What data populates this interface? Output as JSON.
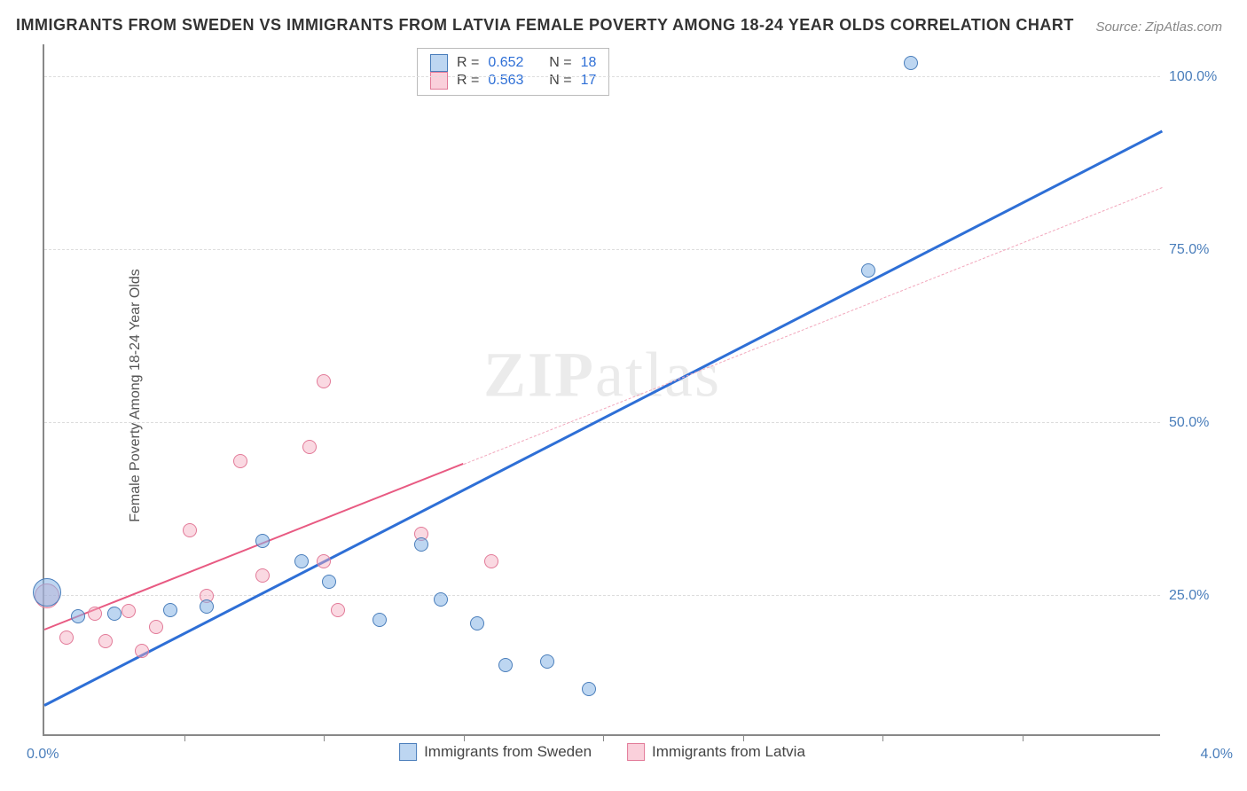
{
  "title": "IMMIGRANTS FROM SWEDEN VS IMMIGRANTS FROM LATVIA FEMALE POVERTY AMONG 18-24 YEAR OLDS CORRELATION CHART",
  "source": "Source: ZipAtlas.com",
  "ylabel": "Female Poverty Among 18-24 Year Olds",
  "watermark_a": "ZIP",
  "watermark_b": "atlas",
  "chart": {
    "type": "scatter",
    "xlim": [
      0.0,
      4.0
    ],
    "ylim": [
      5.0,
      105.0
    ],
    "x_tick_positions": [
      0.5,
      1.0,
      1.5,
      2.0,
      2.5,
      3.0,
      3.5
    ],
    "y_ticks": [
      25.0,
      50.0,
      75.0,
      100.0
    ],
    "y_tick_labels": [
      "25.0%",
      "50.0%",
      "75.0%",
      "100.0%"
    ],
    "xlim_label_left": "0.0%",
    "xlim_label_right": "4.0%",
    "grid_color": "#dddddd",
    "axis_color": "#888888",
    "background_color": "#ffffff",
    "marker_radius": 8,
    "series": {
      "sweden": {
        "label": "Immigrants from Sweden",
        "fill": "rgba(135,181,230,0.55)",
        "stroke": "#4a7ebb",
        "r_value": "0.652",
        "n_value": "18",
        "trend": {
          "x1": 0.0,
          "y1": 9.0,
          "x2": 4.0,
          "y2": 92.0,
          "color": "#2e6fd6"
        },
        "points": [
          {
            "x": 0.01,
            "y": 25.5,
            "r": 16
          },
          {
            "x": 0.12,
            "y": 22.0,
            "r": 8
          },
          {
            "x": 0.25,
            "y": 22.5,
            "r": 8
          },
          {
            "x": 0.45,
            "y": 23.0,
            "r": 8
          },
          {
            "x": 0.58,
            "y": 23.5,
            "r": 8
          },
          {
            "x": 0.78,
            "y": 33.0,
            "r": 8
          },
          {
            "x": 0.92,
            "y": 30.0,
            "r": 8
          },
          {
            "x": 1.02,
            "y": 27.0,
            "r": 8
          },
          {
            "x": 1.2,
            "y": 21.5,
            "r": 8
          },
          {
            "x": 1.35,
            "y": 32.5,
            "r": 8
          },
          {
            "x": 1.42,
            "y": 24.5,
            "r": 8
          },
          {
            "x": 1.55,
            "y": 21.0,
            "r": 8
          },
          {
            "x": 1.65,
            "y": 15.0,
            "r": 8
          },
          {
            "x": 1.8,
            "y": 15.5,
            "r": 8
          },
          {
            "x": 1.95,
            "y": 11.5,
            "r": 8
          },
          {
            "x": 2.95,
            "y": 72.0,
            "r": 8
          },
          {
            "x": 3.1,
            "y": 102.0,
            "r": 8
          }
        ]
      },
      "latvia": {
        "label": "Immigrants from Latvia",
        "fill": "rgba(245,170,190,0.45)",
        "stroke": "#e27a98",
        "r_value": "0.563",
        "n_value": "17",
        "trend_solid": {
          "x1": 0.0,
          "y1": 20.0,
          "x2": 1.5,
          "y2": 44.0,
          "color": "#e85a82"
        },
        "trend_dash": {
          "x1": 1.5,
          "y1": 44.0,
          "x2": 4.0,
          "y2": 84.0,
          "color": "#f2a7bc"
        },
        "points": [
          {
            "x": 0.01,
            "y": 25.0,
            "r": 14
          },
          {
            "x": 0.08,
            "y": 19.0,
            "r": 8
          },
          {
            "x": 0.18,
            "y": 22.5,
            "r": 8
          },
          {
            "x": 0.22,
            "y": 18.5,
            "r": 8
          },
          {
            "x": 0.3,
            "y": 22.8,
            "r": 8
          },
          {
            "x": 0.35,
            "y": 17.0,
            "r": 8
          },
          {
            "x": 0.4,
            "y": 20.5,
            "r": 8
          },
          {
            "x": 0.52,
            "y": 34.5,
            "r": 8
          },
          {
            "x": 0.58,
            "y": 25.0,
            "r": 8
          },
          {
            "x": 0.7,
            "y": 44.5,
            "r": 8
          },
          {
            "x": 0.78,
            "y": 28.0,
            "r": 8
          },
          {
            "x": 0.95,
            "y": 46.5,
            "r": 8
          },
          {
            "x": 1.0,
            "y": 30.0,
            "r": 8
          },
          {
            "x": 1.0,
            "y": 56.0,
            "r": 8
          },
          {
            "x": 1.05,
            "y": 23.0,
            "r": 8
          },
          {
            "x": 1.35,
            "y": 34.0,
            "r": 8
          },
          {
            "x": 1.6,
            "y": 30.0,
            "r": 8
          }
        ]
      }
    }
  },
  "rbox": {
    "r_label": "R =",
    "n_label": "N ="
  },
  "legend_bottom": {
    "sweden": "Immigrants from Sweden",
    "latvia": "Immigrants from Latvia"
  }
}
